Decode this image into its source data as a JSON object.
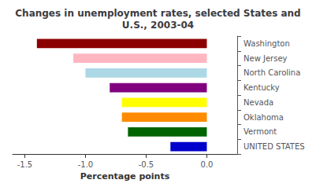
{
  "chart_data": {
    "type": "bar",
    "orientation": "horizontal",
    "title": "Changes in unemployment rates, selected States and\nU.S., 2003-04",
    "categories": [
      "UNITED STATES",
      "Vermont",
      "Oklahoma",
      "Nevada",
      "Kentucky",
      "North Carolina",
      "New Jersey",
      "Washington"
    ],
    "values": [
      -0.3,
      -0.65,
      -0.7,
      -0.7,
      -0.8,
      -1.0,
      -1.1,
      -1.4
    ],
    "colors": [
      "#0000CC",
      "#006400",
      "#FF8C00",
      "#FFFF00",
      "#800080",
      "#ADD8E6",
      "#FFB6C1",
      "#8B0000"
    ],
    "xlabel": "Percentage points",
    "xlim": [
      -1.6,
      0.25
    ],
    "xticks": [
      -1.5,
      {
        "value": -1.0,
        "label": "-1.0"
      },
      -0.5,
      {
        "value": 0.0,
        "label": "0.0"
      }
    ],
    "grid": false
  }
}
